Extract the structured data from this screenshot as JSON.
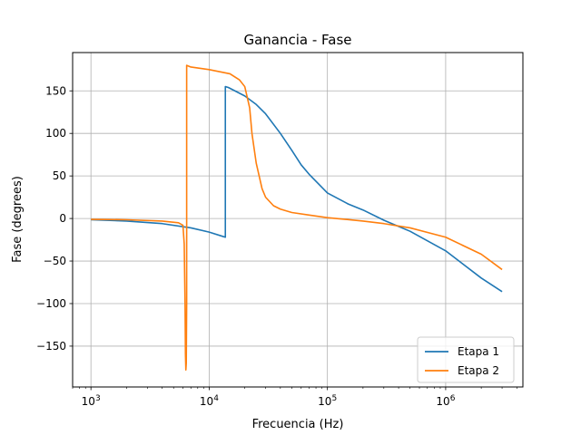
{
  "chart_data": {
    "type": "line",
    "title": "Ganancia - Fase",
    "xlabel": "Frecuencia (Hz)",
    "ylabel": "Fase (degrees)",
    "xscale": "log",
    "xlim": [
      700,
      4500000
    ],
    "ylim": [
      -198,
      195
    ],
    "x_ticks": [
      {
        "value": 1000,
        "base": "10",
        "exp": "3"
      },
      {
        "value": 10000,
        "base": "10",
        "exp": "4"
      },
      {
        "value": 100000,
        "base": "10",
        "exp": "5"
      },
      {
        "value": 1000000,
        "base": "10",
        "exp": "6"
      }
    ],
    "y_ticks": [
      {
        "value": 150,
        "label": "150"
      },
      {
        "value": 100,
        "label": "100"
      },
      {
        "value": 50,
        "label": "50"
      },
      {
        "value": 0,
        "label": "0"
      },
      {
        "value": -50,
        "label": "−50"
      },
      {
        "value": -100,
        "label": "−100"
      },
      {
        "value": -150,
        "label": "−150"
      }
    ],
    "grid": true,
    "legend_position": "lower-right",
    "series": [
      {
        "name": "Etapa 1",
        "color": "#1f77b4",
        "x": [
          1000,
          2000,
          4000,
          7000,
          10000,
          13000,
          13700,
          13700,
          14500,
          20000,
          25000,
          30000,
          40000,
          50000,
          60000,
          70000,
          100000,
          150000,
          200000,
          300000,
          500000,
          1000000,
          2000000,
          3000000
        ],
        "y": [
          -1.5,
          -3,
          -6,
          -11,
          -16,
          -21,
          -22,
          155,
          154,
          144,
          134,
          123,
          100,
          80,
          63,
          52,
          30,
          17,
          10,
          -2,
          -15,
          -38,
          -70,
          -86
        ]
      },
      {
        "name": "Etapa 2",
        "color": "#ff7f0e",
        "x": [
          1000,
          2000,
          4000,
          5500,
          6000,
          6150,
          6250,
          6300,
          6350,
          6400,
          6450,
          6450,
          7000,
          10000,
          15000,
          18000,
          20000,
          22000,
          23000,
          25000,
          28000,
          30000,
          35000,
          40000,
          50000,
          70000,
          100000,
          200000,
          300000,
          500000,
          1000000,
          2000000,
          3000000
        ],
        "y": [
          -1,
          -1.5,
          -3,
          -5,
          -8,
          -30,
          -100,
          -160,
          -178,
          -170,
          -100,
          180,
          178,
          175,
          170,
          163,
          155,
          130,
          100,
          65,
          35,
          25,
          15,
          11,
          7,
          4,
          1,
          -3,
          -6,
          -11,
          -22,
          -42,
          -60
        ]
      }
    ]
  }
}
